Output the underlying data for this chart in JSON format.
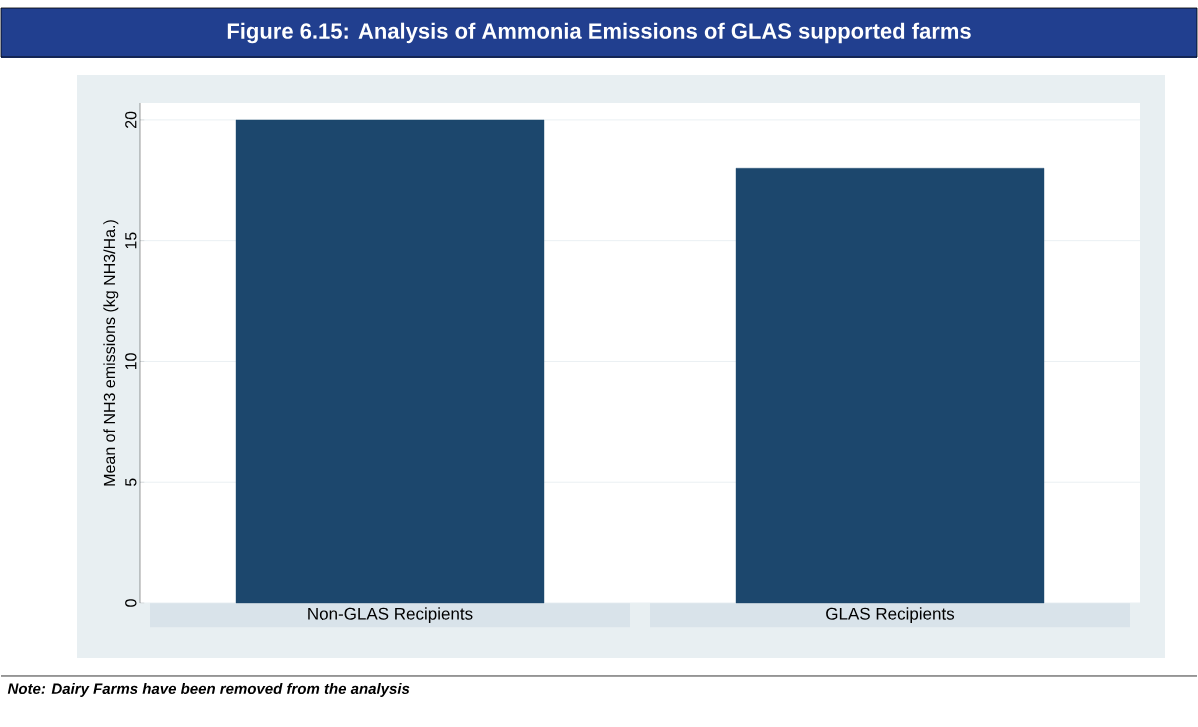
{
  "chart_data": {
    "type": "bar",
    "title": "Figure 6.15: Analysis of Ammonia Emissions of GLAS supported farms",
    "categories": [
      "Non-GLAS Recipients",
      "GLAS Recipients"
    ],
    "values": [
      20.0,
      18.0
    ],
    "color": "#1c476d",
    "ylabel": "Mean of NH3 emissions (kg NH3/Ha.)",
    "ylim": [
      0,
      20.7
    ],
    "yticks": [
      0,
      5,
      10,
      15,
      20
    ],
    "grid": "y",
    "annotations": [
      "Note: Dairy Farms have been removed from the analysis"
    ]
  }
}
